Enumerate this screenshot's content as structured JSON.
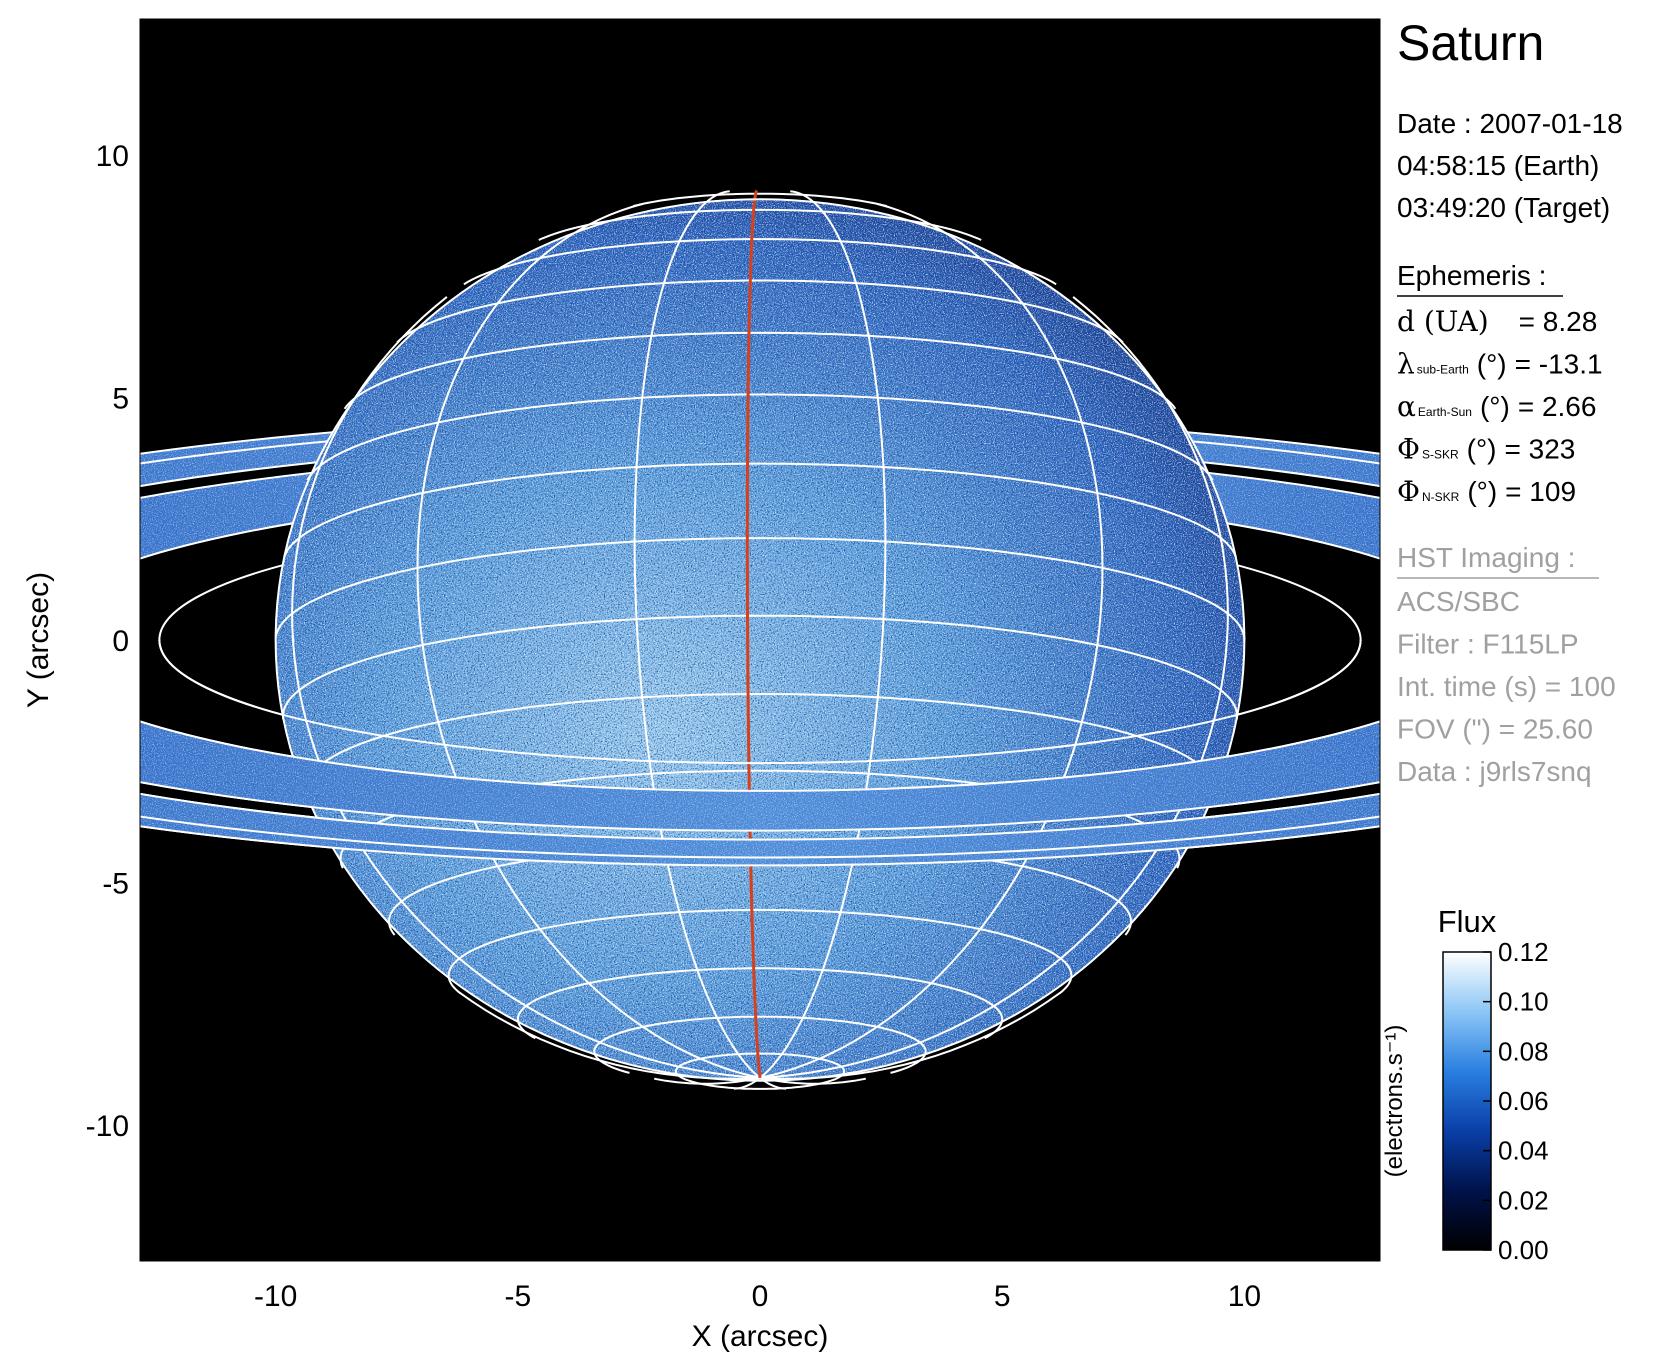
{
  "chart_data": {
    "type": "image",
    "xlabel": "X (arcsec)",
    "ylabel": "Y (arcsec)",
    "xlim": [
      -12.8,
      12.8
    ],
    "ylim": [
      -12.8,
      12.8
    ],
    "xticks": [
      -10,
      -5,
      0,
      5,
      10
    ],
    "yticks": [
      -10,
      -5,
      0,
      5,
      10
    ],
    "colorbar": {
      "title": "Flux",
      "label": "(electrons.s⁻¹)",
      "ylim": [
        0,
        0.12
      ],
      "yticks": [
        {
          "value": 0,
          "label": "0.00"
        },
        0.02,
        0.04,
        0.06,
        0.08,
        {
          "value": 0.1,
          "label": "0.10"
        },
        0.12
      ],
      "colors": [
        "#000000",
        "#00124a",
        "#0a3fa8",
        "#2a7fe0",
        "#8cc6f6",
        "#ffffff"
      ]
    },
    "info": {
      "title": "Saturn",
      "date_lines": [
        "Date : 2007-01-18",
        "04:58:15 (Earth)",
        "03:49:20 (Target)"
      ],
      "ephemeris": {
        "heading": "Ephemeris :",
        "rows": [
          {
            "symbol": "d (UA)",
            "value": "= 8.28"
          },
          {
            "symbol": "λ",
            "subscript": "sub-Earth",
            "unit": "(°)",
            "value": "= -13.1"
          },
          {
            "symbol": "α",
            "subscript": "Earth-Sun",
            "unit": "(°)",
            "value": "= 2.66"
          },
          {
            "symbol": "Φ",
            "subscript": "S-SKR",
            "unit": "(°)",
            "value": "= 323"
          },
          {
            "symbol": "Φ",
            "subscript": "N-SKR",
            "unit": "(°)",
            "value": "= 109"
          }
        ]
      },
      "imaging": {
        "heading": "HST Imaging :",
        "lines": [
          "ACS/SBC",
          "Filter : F115LP",
          "Int. time (s) = 100",
          "FOV (\") = 25.60",
          "Data : j9rls7snq"
        ]
      }
    }
  }
}
